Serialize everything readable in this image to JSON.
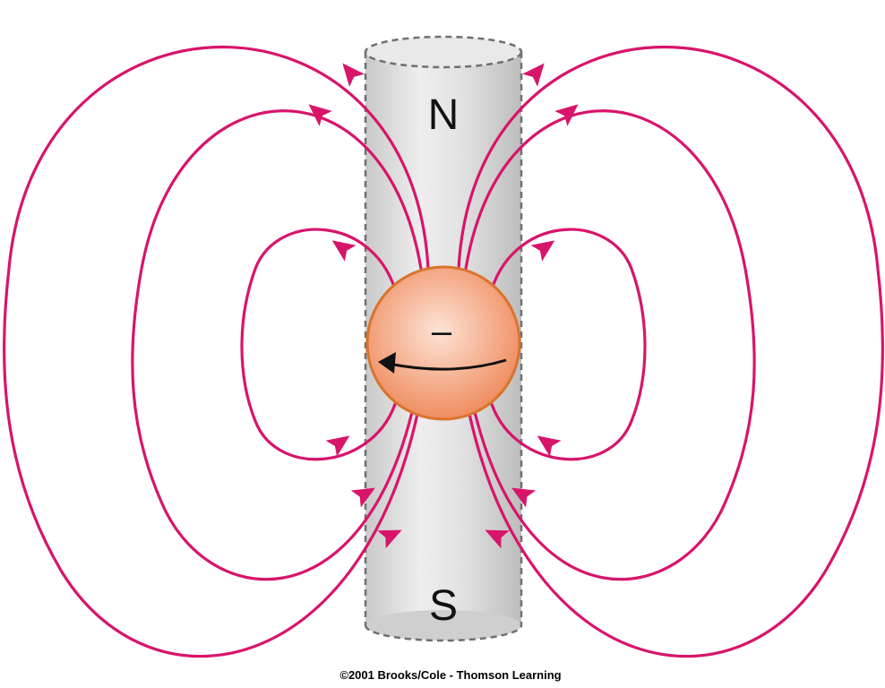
{
  "diagram": {
    "north_label": "N",
    "south_label": "S",
    "charge_label": "–",
    "credit": "©2001 Brooks/Cole - Thomson Learning"
  },
  "colors": {
    "field_line": "#d8146b",
    "magnet_fill": "#dcdcdc",
    "magnet_outline": "#707070",
    "charge_light": "#fde3d6",
    "charge_dark": "#ef8a5c",
    "charge_outline": "#d9742e",
    "spin_arrow": "#111111"
  },
  "icons": {
    "spin_direction": "curved-arrow-left-icon",
    "field_direction": "arrowhead-icon"
  }
}
